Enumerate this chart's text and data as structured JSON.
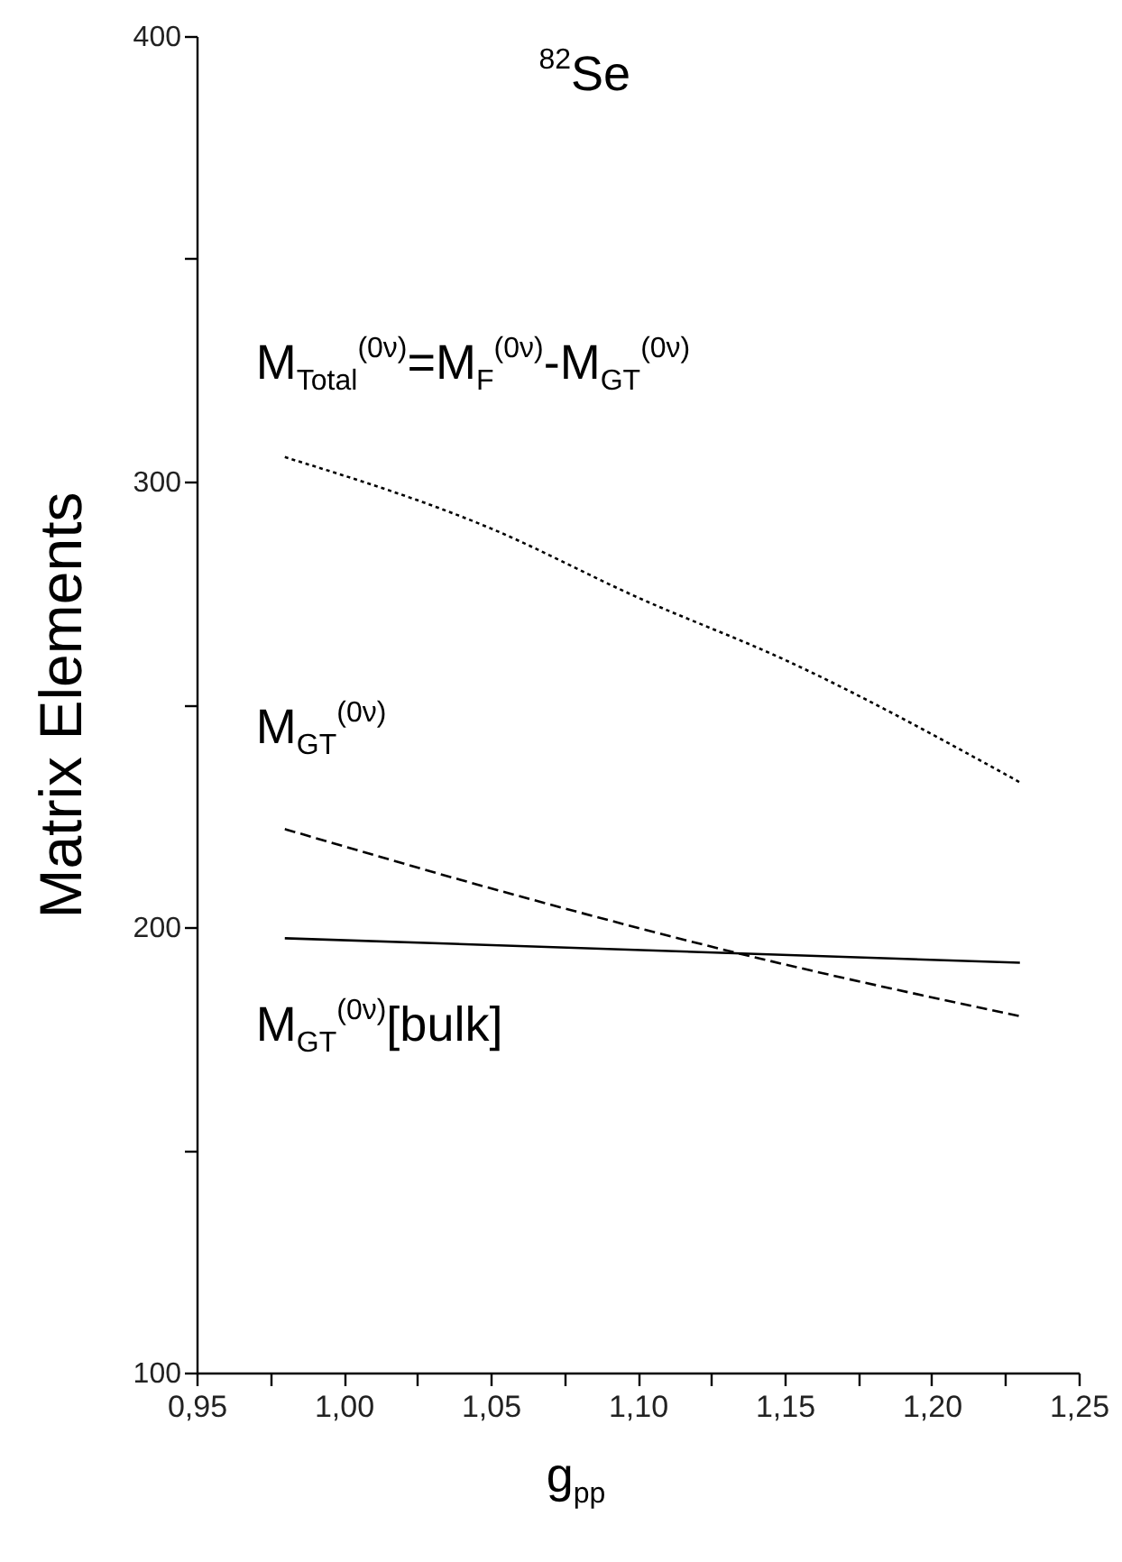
{
  "chart_data": {
    "type": "line",
    "title": "$^{82}$Se",
    "xlabel": "g$_{pp}$",
    "ylabel": "Matrix Elements",
    "xlim": [
      0.95,
      1.25
    ],
    "xticks": [
      {
        "value": 0.95,
        "label": "0,95"
      },
      {
        "value": 0.975,
        "label": null
      },
      {
        "value": 1.0,
        "label": "1,00"
      },
      {
        "value": 1.025,
        "label": null
      },
      {
        "value": 1.05,
        "label": "1,05"
      },
      {
        "value": 1.075,
        "label": null
      },
      {
        "value": 1.1,
        "label": "1,10"
      },
      {
        "value": 1.125,
        "label": null
      },
      {
        "value": 1.15,
        "label": "1,15"
      },
      {
        "value": 1.175,
        "label": null
      },
      {
        "value": 1.2,
        "label": "1,20"
      },
      {
        "value": 1.225,
        "label": null
      },
      {
        "value": 1.25,
        "label": "1,25"
      }
    ],
    "ylim": [
      100,
      400
    ],
    "yticks": [
      100,
      {
        "value": 150,
        "label": null
      },
      200,
      {
        "value": 250,
        "label": null
      },
      300,
      {
        "value": 350,
        "label": null
      },
      400
    ],
    "grid": false,
    "series": [
      {
        "name": "M$_{Total}$$^{(0ν)}$=M$_{F}$$^{(0ν)}$-M$_{GT}$$^{(0ν)}$",
        "color": "#000000",
        "line_style": "dotted",
        "x": [
          0.98,
          1.05,
          1.1,
          1.15,
          1.23
        ],
        "values": [
          305.5,
          289.5,
          274,
          260,
          232.5
        ]
      },
      {
        "name": "M$_{GT}$$^{(0ν)}$",
        "color": "#000000",
        "line_style": "dashed",
        "x": [
          0.98,
          1.065,
          1.135,
          1.23
        ],
        "values": [
          222,
          206,
          194,
          180
        ]
      },
      {
        "name": "M$_{GT}$$^{(0ν)}$[bulk]",
        "color": "#000000",
        "line_style": "solid",
        "x": [
          0.98,
          1.23
        ],
        "values": [
          197.5,
          192
        ]
      }
    ]
  }
}
